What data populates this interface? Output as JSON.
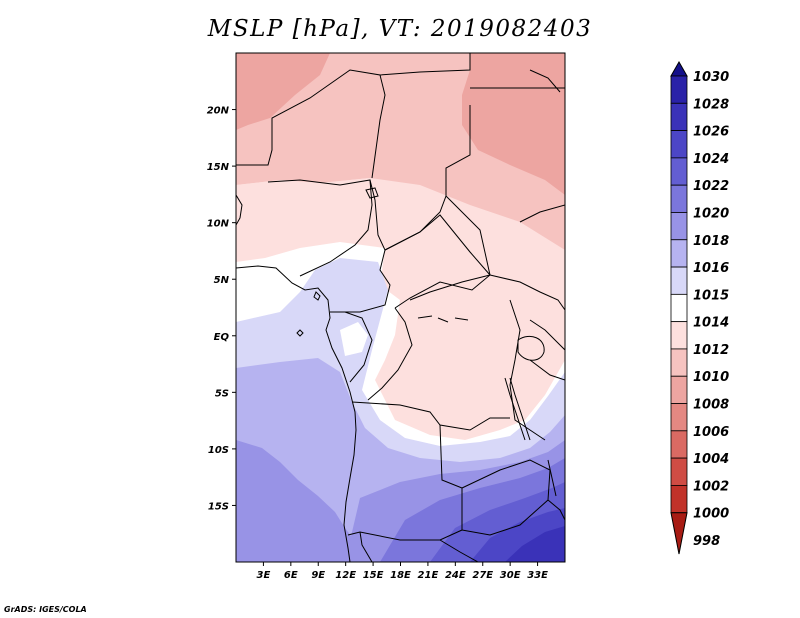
{
  "title": "MSLP [hPa], VT: 2019082403",
  "credit": "GrADS: IGES/COLA",
  "map": {
    "lon_range": [
      0,
      36
    ],
    "lat_range": [
      -20,
      25
    ],
    "lat_ticks": [
      {
        "value": 20,
        "label": "20N"
      },
      {
        "value": 15,
        "label": "15N"
      },
      {
        "value": 10,
        "label": "10N"
      },
      {
        "value": 5,
        "label": "5N"
      },
      {
        "value": 0,
        "label": "EQ"
      },
      {
        "value": -5,
        "label": "5S"
      },
      {
        "value": -10,
        "label": "10S"
      },
      {
        "value": -15,
        "label": "15S"
      }
    ],
    "lon_ticks": [
      {
        "value": 3,
        "label": "3E"
      },
      {
        "value": 6,
        "label": "6E"
      },
      {
        "value": 9,
        "label": "9E"
      },
      {
        "value": 12,
        "label": "12E"
      },
      {
        "value": 15,
        "label": "15E"
      },
      {
        "value": 18,
        "label": "18E"
      },
      {
        "value": 21,
        "label": "21E"
      },
      {
        "value": 24,
        "label": "24E"
      },
      {
        "value": 27,
        "label": "27E"
      },
      {
        "value": 30,
        "label": "30E"
      },
      {
        "value": 33,
        "label": "33E"
      }
    ]
  },
  "colorbar": {
    "entries": [
      {
        "label": "1030",
        "color": "#1a1496"
      },
      {
        "label": "1028",
        "color": "#2a22a8"
      },
      {
        "label": "1026",
        "color": "#3a32b8"
      },
      {
        "label": "1024",
        "color": "#4c46c6"
      },
      {
        "label": "1022",
        "color": "#635ed2"
      },
      {
        "label": "1020",
        "color": "#7b76dc"
      },
      {
        "label": "1018",
        "color": "#9893e6"
      },
      {
        "label": "1016",
        "color": "#b6b3f0"
      },
      {
        "label": "1015",
        "color": "#d8d8f8"
      },
      {
        "label": "1014",
        "color": "#ffffff"
      },
      {
        "label": "1012",
        "color": "#fde0de"
      },
      {
        "label": "1010",
        "color": "#f6c3c0"
      },
      {
        "label": "1008",
        "color": "#eda5a1"
      },
      {
        "label": "1006",
        "color": "#e48882"
      },
      {
        "label": "1004",
        "color": "#da6a63"
      },
      {
        "label": "1002",
        "color": "#cf4c44"
      },
      {
        "label": "1000",
        "color": "#c13229"
      },
      {
        "label": "998",
        "color": "#b22218"
      }
    ],
    "top_arrow_color": "#14108a",
    "bottom_arrow_color": "#a81c14"
  }
}
